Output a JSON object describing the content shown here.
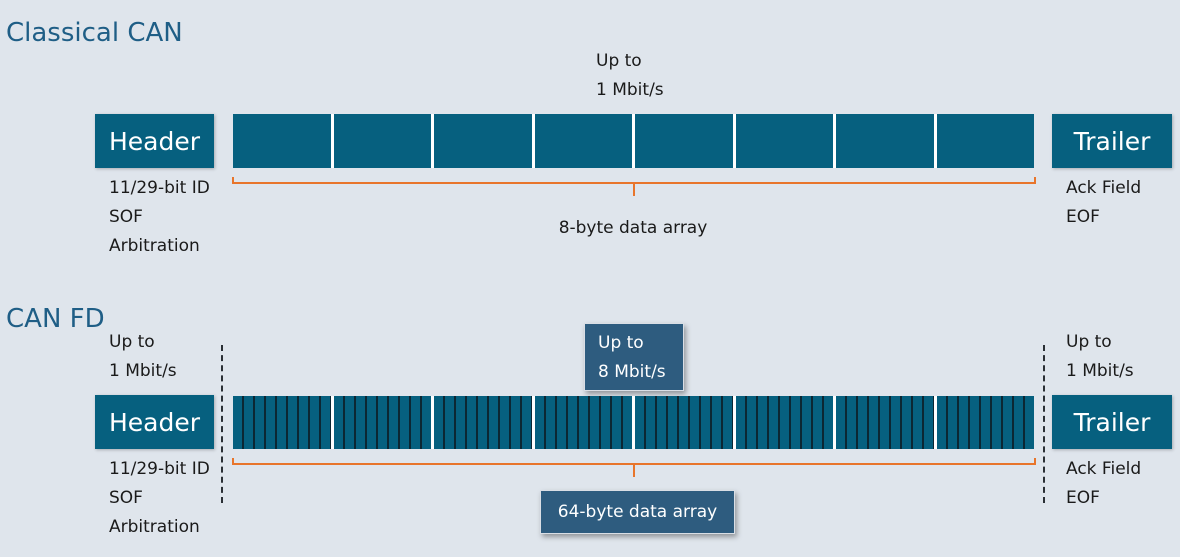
{
  "classical": {
    "title": "Classical CAN",
    "speed_line1": "Up to",
    "speed_line2": "1 Mbit/s",
    "header_label": "Header",
    "trailer_label": "Trailer",
    "header_info": [
      "11/29-bit ID",
      "SOF",
      "Arbitration"
    ],
    "trailer_info": [
      "Ack Field",
      "EOF"
    ],
    "data_label": "8-byte data array",
    "byte_count": 8
  },
  "canfd": {
    "title": "CAN FD",
    "left_speed_line1": "Up to",
    "left_speed_line2": "1 Mbit/s",
    "center_speed_line1": "Up to",
    "center_speed_line2": "8 Mbit/s",
    "right_speed_line1": "Up to",
    "right_speed_line2": "1 Mbit/s",
    "header_label": "Header",
    "trailer_label": "Trailer",
    "header_info": [
      "11/29-bit ID",
      "SOF",
      "Arbitration"
    ],
    "trailer_info": [
      "Ack Field",
      "EOF"
    ],
    "data_label": "64-byte data array",
    "byte_count": 8
  },
  "colors": {
    "box": "#06607f",
    "bracket": "#e8752b",
    "callout": "#2e5c7f",
    "title": "#1f5e86"
  }
}
